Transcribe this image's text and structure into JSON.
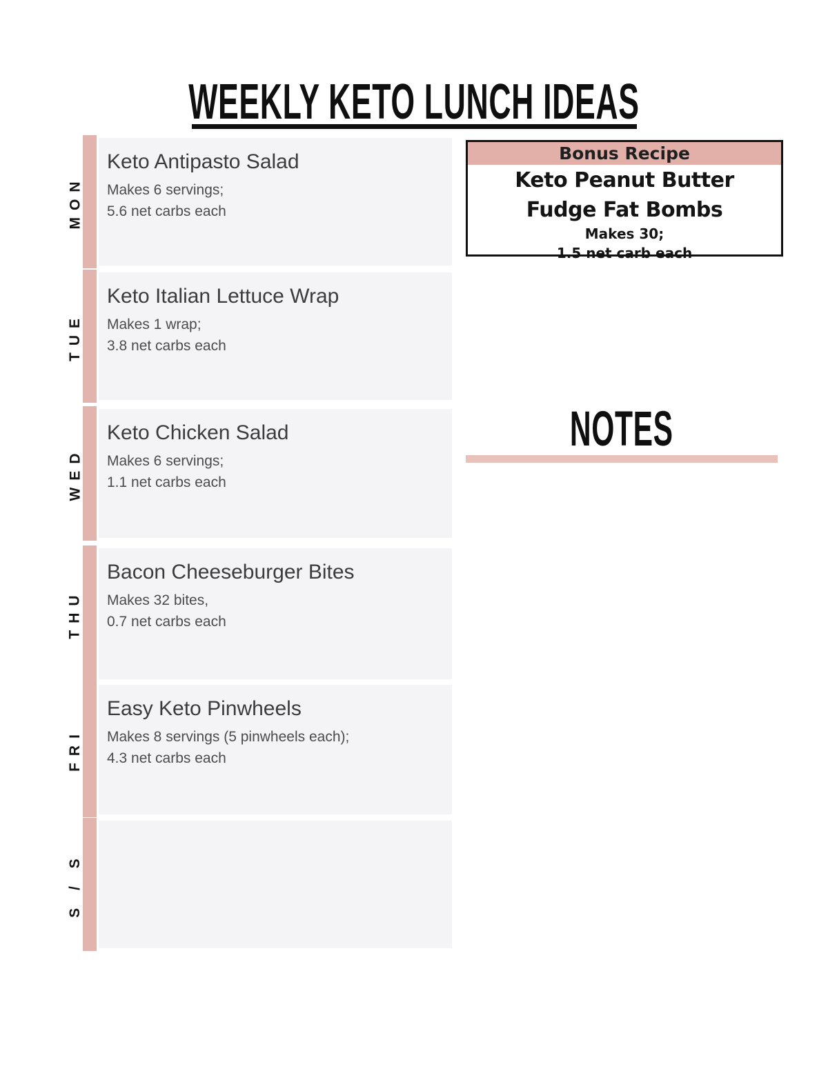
{
  "title": "WEEKLY KETO LUNCH IDEAS",
  "colors": {
    "accent_bar": "#e1b4ad",
    "accent_header": "#e2b0a9",
    "accent_soft": "#e7c1ba",
    "row_bg": "#f4f4f6",
    "ink": "#0f0f0f"
  },
  "days": [
    {
      "label": "MON",
      "recipe": "Keto Antipasto Salad",
      "line1": "Makes 6 servings;",
      "line2": "5.6 net carbs each"
    },
    {
      "label": "TUE",
      "recipe": "Keto Italian Lettuce Wrap",
      "line1": "Makes 1 wrap;",
      "line2": "3.8 net carbs each"
    },
    {
      "label": "WED",
      "recipe": "Keto Chicken Salad",
      "line1": "Makes 6 servings;",
      "line2": "1.1 net carbs each"
    },
    {
      "label": "THU",
      "recipe": "Bacon Cheeseburger Bites",
      "line1": "Makes 32 bites,",
      "line2": "0.7 net carbs each"
    },
    {
      "label": "FRI",
      "recipe": "Easy Keto Pinwheels",
      "line1": "Makes 8 servings (5 pinwheels each);",
      "line2": "4.3 net carbs each"
    },
    {
      "label": "S / S",
      "recipe": "",
      "line1": "",
      "line2": ""
    }
  ],
  "bonus": {
    "header": "Bonus Recipe",
    "name_line1": "Keto Peanut Butter",
    "name_line2": "Fudge Fat Bombs",
    "detail_line1": "Makes 30;",
    "detail_line2": "1.5 net carb each"
  },
  "notes_heading": "NOTES"
}
